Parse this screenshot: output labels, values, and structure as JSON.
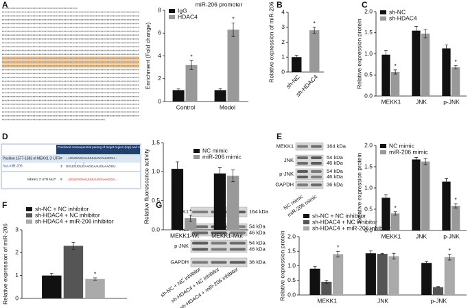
{
  "panel_labels": [
    "A",
    "B",
    "C",
    "D",
    "E",
    "F",
    "G"
  ],
  "target_table": {
    "header": "Predicted consequential pairing of target region (top) and miRNA (bottom)",
    "rows": [
      {
        "name": "Position 1577-1583 of MEKK1 3' UTR",
        "end": "5'",
        "sequence": "...UCUGAGAAUUUUUACAUUCCU..."
      },
      {
        "name": "hsa-miR-206",
        "end": "3'",
        "sequence": "GGUGUGUGAAGGAAUGUAAGGU"
      },
      {
        "name": "MEKK1 3' UTR MUT",
        "end": "5'",
        "sequence": "...UCUGAGAAUUUUUAGUAAGGA..."
      }
    ]
  },
  "blots": [
    {
      "rows": [
        {
          "protein": "MEKK1",
          "sizes": [
            "164 kDa"
          ]
        },
        {
          "protein": "JNK",
          "sizes": [
            "54 kDa",
            "46 kDa"
          ]
        },
        {
          "protein": "p-JNK",
          "sizes": [
            "54 kDa",
            "46 kDa"
          ]
        },
        {
          "protein": "GAPDH",
          "sizes": [
            "36 kDa"
          ]
        }
      ],
      "lanes": [
        "NC mimic",
        "miR-206 mimic"
      ]
    },
    {
      "rows": [
        {
          "protein": "MEKK1",
          "sizes": [
            "164 kDa"
          ]
        },
        {
          "protein": "JNK",
          "sizes": [
            "54 kDa",
            "46 kDa"
          ]
        },
        {
          "protein": "p-JNK",
          "sizes": [
            "54 kDa",
            "46 kDa"
          ]
        },
        {
          "protein": "GAPDH",
          "sizes": [
            "36 kDa"
          ]
        }
      ],
      "lanes": [
        "sh-NC + NC inhibitor",
        "sh-HDAC4 + NC inhibitor",
        "sh-HDAC4 + miR-206 inhibitor"
      ]
    }
  ],
  "chart_data": [
    {
      "type": "bar",
      "title": "miR-206 promoter",
      "ylabel": "Enrichment (Fold change)",
      "categories": [
        "Control",
        "Model"
      ],
      "series": [
        {
          "name": "IgG",
          "color": "#111111",
          "values": [
            1.0,
            1.0
          ],
          "errors": [
            0.1,
            0.15
          ]
        },
        {
          "name": "HDAC4",
          "color": "#999999",
          "values": [
            3.2,
            6.3
          ],
          "errors": [
            0.4,
            0.6
          ],
          "significance": [
            "*",
            "*"
          ]
        }
      ],
      "ylim": [
        0,
        8
      ],
      "yticks": [
        0,
        2,
        4,
        6,
        8
      ],
      "legend": "upper left"
    },
    {
      "type": "bar",
      "ylabel": "Relative expression of miR-206",
      "categories": [
        "sh-NC",
        "sh-HDAC4"
      ],
      "values": [
        1.0,
        2.8
      ],
      "errors": [
        0.12,
        0.2
      ],
      "colors": [
        "#111111",
        "#999999"
      ],
      "significance": [
        null,
        "*"
      ],
      "ylim": [
        0,
        4
      ],
      "yticks": [
        0,
        1,
        2,
        3,
        4
      ]
    },
    {
      "type": "bar",
      "ylabel": "Relative expression protein",
      "categories": [
        "MEKK1",
        "JNK",
        "p-JNK"
      ],
      "series": [
        {
          "name": "sh-NC",
          "color": "#111111",
          "values": [
            0.98,
            1.55,
            1.13
          ],
          "errors": [
            0.1,
            0.1,
            0.08
          ]
        },
        {
          "name": "sh-HDAC4",
          "color": "#999999",
          "values": [
            0.57,
            1.48,
            0.68
          ],
          "errors": [
            0.05,
            0.1,
            0.04
          ],
          "significance": [
            "*",
            null,
            "*"
          ]
        }
      ],
      "ylim": [
        0,
        2
      ],
      "yticks": [
        {
          "value": 0,
          "label": "0.0"
        },
        0.5,
        {
          "value": 1,
          "label": "1.0"
        },
        1.5,
        {
          "value": 2,
          "label": "2.0"
        }
      ],
      "legend": "upper left"
    },
    {
      "type": "bar",
      "ylabel": "Relative fluorescence activity",
      "categories": [
        "MEKK1-Wt",
        "MEKK1-Mut"
      ],
      "series": [
        {
          "name": "NC mimic",
          "color": "#111111",
          "values": [
            1.05,
            0.97
          ],
          "errors": [
            0.12,
            0.1
          ]
        },
        {
          "name": "miR-206 mimic",
          "color": "#999999",
          "values": [
            0.2,
            0.93
          ],
          "errors": [
            0.05,
            0.1
          ],
          "significance": [
            "*",
            null
          ]
        }
      ],
      "ylim": [
        0,
        1.5
      ],
      "yticks": [
        {
          "value": 0,
          "label": "0.0"
        },
        0.5,
        {
          "value": 1,
          "label": "1.0"
        },
        1.5
      ],
      "legend": "upper right"
    },
    {
      "type": "bar",
      "ylabel": "Relative expression protein",
      "categories": [
        "MEKK1",
        "JNK",
        "p-JNK"
      ],
      "series": [
        {
          "name": "NC mimic",
          "color": "#111111",
          "values": [
            0.77,
            1.67,
            1.15
          ],
          "errors": [
            0.07,
            0.05,
            0.07
          ]
        },
        {
          "name": "miR-206 mimic",
          "color": "#999999",
          "values": [
            0.4,
            1.62,
            0.58
          ],
          "errors": [
            0.04,
            0.07,
            0.05
          ],
          "significance": [
            "*",
            null,
            "*"
          ]
        }
      ],
      "ylim": [
        0,
        2
      ],
      "yticks": [
        {
          "value": 0,
          "label": "0.0"
        },
        0.5,
        {
          "value": 1,
          "label": "1.0"
        },
        1.5,
        {
          "value": 2,
          "label": "2.0"
        }
      ],
      "legend": "upper left"
    },
    {
      "type": "bar",
      "ylabel": "Relative expression of miR-206",
      "categories": [
        null
      ],
      "series": [
        {
          "name": "sh-NC + NC inhibitor",
          "color": "#111111",
          "values": [
            1.0
          ],
          "errors": [
            0.1
          ]
        },
        {
          "name": "sh-HDAC4 + NC inhibitor",
          "color": "#555555",
          "values": [
            2.3
          ],
          "errors": [
            0.15
          ]
        },
        {
          "name": "sh-HDAC4 + miR-206 inhibitor",
          "color": "#aaaaaa",
          "values": [
            0.85
          ],
          "errors": [
            0.05
          ],
          "significance": [
            "*"
          ]
        }
      ],
      "ylim": [
        0,
        3
      ],
      "yticks": [
        0,
        1,
        2,
        3
      ],
      "legend": "above"
    },
    {
      "type": "bar",
      "ylabel": "Relative expression protein",
      "categories": [
        "MEKK1",
        "JNK",
        "p-JNK"
      ],
      "series": [
        {
          "name": "sh-NC + NC inhibitor",
          "color": "#111111",
          "values": [
            0.9,
            1.43,
            1.1
          ],
          "errors": [
            0.07,
            0.08,
            0.05
          ]
        },
        {
          "name": "sh-HDAC4 + NC inhibitor",
          "color": "#555555",
          "values": [
            0.45,
            1.41,
            0.27
          ],
          "errors": [
            0.05,
            0.02,
            0.02
          ]
        },
        {
          "name": "sh-HDAC4 + miR-206 inhibitor",
          "color": "#aaaaaa",
          "values": [
            1.4,
            1.33,
            1.3
          ],
          "errors": [
            0.1,
            0.1,
            0.1
          ],
          "significance": [
            "*",
            null,
            "*"
          ]
        }
      ],
      "ylim": [
        0,
        2
      ],
      "yticks": [
        {
          "value": 0,
          "label": "0.0"
        },
        0.5,
        {
          "value": 1,
          "label": "1.0"
        },
        1.5,
        {
          "value": 2,
          "label": "2.0"
        }
      ],
      "legend": "above"
    }
  ]
}
